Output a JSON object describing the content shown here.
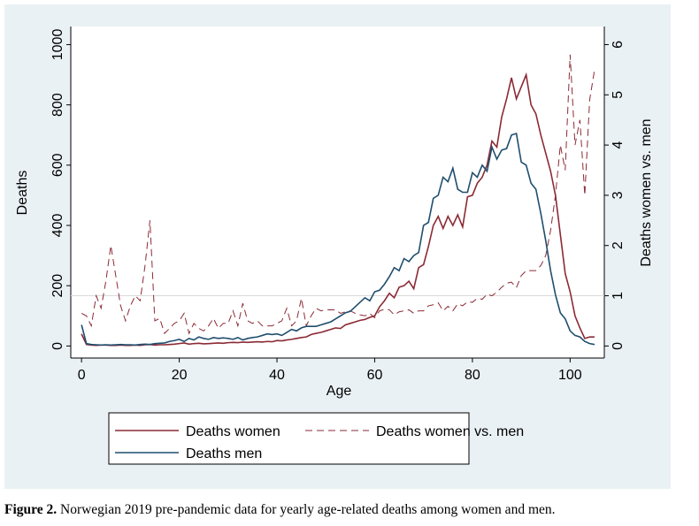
{
  "chart_data": {
    "type": "line",
    "xlabel": "Age",
    "ylabel": "Deaths",
    "y2label": "Deaths women vs. men",
    "x": [
      0,
      1,
      2,
      3,
      4,
      5,
      6,
      7,
      8,
      9,
      10,
      11,
      12,
      13,
      14,
      15,
      16,
      17,
      18,
      19,
      20,
      21,
      22,
      23,
      24,
      25,
      26,
      27,
      28,
      29,
      30,
      31,
      32,
      33,
      34,
      35,
      36,
      37,
      38,
      39,
      40,
      41,
      42,
      43,
      44,
      45,
      46,
      47,
      48,
      49,
      50,
      51,
      52,
      53,
      54,
      55,
      56,
      57,
      58,
      59,
      60,
      61,
      62,
      63,
      64,
      65,
      66,
      67,
      68,
      69,
      70,
      71,
      72,
      73,
      74,
      75,
      76,
      77,
      78,
      79,
      80,
      81,
      82,
      83,
      84,
      85,
      86,
      87,
      88,
      89,
      90,
      91,
      92,
      93,
      94,
      95,
      96,
      97,
      98,
      99,
      100,
      101,
      102,
      103,
      104,
      105
    ],
    "series": [
      {
        "name": "Deaths women",
        "color": "#8b2a35",
        "axis": "y",
        "dashed": false,
        "values": [
          40,
          5,
          3,
          2,
          3,
          3,
          2,
          2,
          3,
          2,
          2,
          3,
          2,
          4,
          5,
          3,
          4,
          4,
          5,
          6,
          8,
          10,
          6,
          8,
          9,
          7,
          8,
          9,
          10,
          9,
          11,
          12,
          11,
          13,
          12,
          13,
          14,
          13,
          15,
          14,
          18,
          17,
          20,
          22,
          25,
          28,
          30,
          38,
          42,
          45,
          50,
          55,
          60,
          58,
          70,
          75,
          80,
          85,
          88,
          95,
          100,
          130,
          150,
          175,
          160,
          195,
          200,
          215,
          190,
          260,
          270,
          330,
          400,
          430,
          390,
          430,
          400,
          435,
          395,
          495,
          500,
          540,
          560,
          600,
          680,
          660,
          760,
          820,
          890,
          820,
          860,
          900,
          800,
          770,
          700,
          640,
          580,
          500,
          370,
          240,
          180,
          100,
          60,
          25,
          30,
          30
        ]
      },
      {
        "name": "Deaths women vs. men",
        "color": "#8b2a35",
        "axis": "y2",
        "dashed": true,
        "values": [
          0.65,
          0.6,
          0.4,
          1.0,
          0.75,
          1.3,
          2.0,
          1.4,
          0.8,
          0.5,
          0.8,
          1.0,
          0.9,
          1.6,
          2.5,
          0.5,
          0.55,
          0.25,
          0.35,
          0.45,
          0.5,
          0.65,
          0.25,
          0.45,
          0.35,
          0.3,
          0.4,
          0.55,
          0.35,
          0.45,
          0.45,
          0.7,
          0.4,
          0.85,
          0.5,
          0.45,
          0.5,
          0.4,
          0.4,
          0.4,
          0.45,
          0.5,
          0.75,
          0.4,
          0.5,
          0.95,
          0.4,
          0.6,
          0.75,
          0.7,
          0.72,
          0.72,
          0.72,
          0.65,
          0.68,
          0.7,
          0.65,
          0.62,
          0.6,
          0.65,
          0.56,
          0.7,
          0.73,
          0.72,
          0.62,
          0.68,
          0.7,
          0.72,
          0.65,
          0.7,
          0.7,
          0.8,
          0.82,
          0.86,
          0.7,
          0.79,
          0.7,
          0.84,
          0.8,
          0.88,
          0.87,
          0.95,
          0.93,
          1.03,
          1.0,
          1.07,
          1.17,
          1.25,
          1.27,
          1.16,
          1.4,
          1.5,
          1.5,
          1.5,
          1.6,
          1.8,
          2.3,
          3.0,
          4.0,
          3.5,
          5.8,
          4.0,
          4.5,
          3.0,
          4.9,
          5.5
        ]
      },
      {
        "name": "Deaths men",
        "color": "#1f4e6e",
        "axis": "y",
        "dashed": false,
        "values": [
          70,
          8,
          5,
          4,
          3,
          4,
          3,
          4,
          5,
          4,
          4,
          3,
          5,
          6,
          5,
          8,
          9,
          10,
          15,
          18,
          22,
          15,
          25,
          20,
          30,
          25,
          22,
          28,
          25,
          27,
          25,
          22,
          28,
          20,
          25,
          28,
          30,
          35,
          40,
          38,
          40,
          35,
          45,
          55,
          50,
          60,
          65,
          65,
          65,
          70,
          75,
          80,
          90,
          100,
          110,
          115,
          130,
          145,
          160,
          150,
          180,
          185,
          205,
          230,
          260,
          250,
          290,
          280,
          300,
          310,
          400,
          410,
          490,
          500,
          560,
          545,
          590,
          520,
          510,
          510,
          575,
          560,
          600,
          580,
          660,
          620,
          650,
          655,
          700,
          705,
          610,
          600,
          540,
          520,
          440,
          350,
          250,
          170,
          110,
          90,
          50,
          35,
          30,
          15,
          8,
          5
        ]
      }
    ],
    "xlim": [
      -2.2,
      107
    ],
    "xticks": [
      0,
      20,
      40,
      60,
      80,
      100
    ],
    "ylim": [
      -40,
      1060
    ],
    "yticks": [
      0,
      200,
      400,
      600,
      800,
      1000
    ],
    "y2lim": [
      -0.24,
      6.36
    ],
    "y2ticks": [
      0,
      1,
      2,
      3,
      4,
      5,
      6
    ],
    "y2_reference_line": 1,
    "grid": false
  },
  "caption": {
    "label": "Figure 2.",
    "text": "Norwegian 2019 pre-pandemic data for yearly age-related deaths among women and men."
  }
}
